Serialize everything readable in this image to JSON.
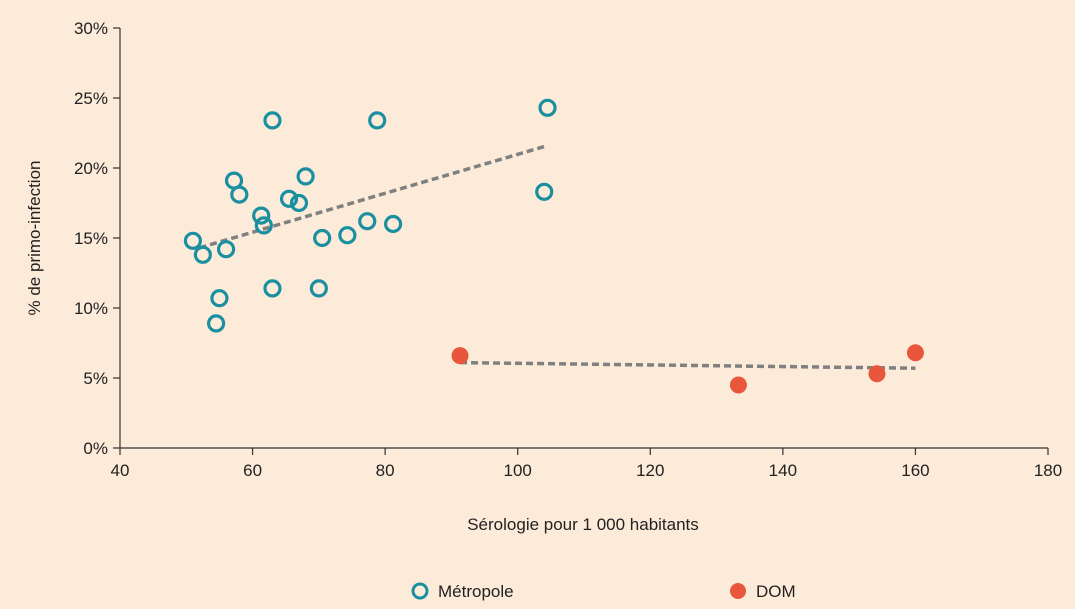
{
  "chart_data": {
    "type": "scatter",
    "title": "",
    "xlabel": "Sérologie pour 1 000 habitants",
    "ylabel": "% de primo-infection",
    "xlim": [
      40,
      180
    ],
    "ylim": [
      0,
      30
    ],
    "x_ticks": [
      40,
      60,
      80,
      100,
      120,
      140,
      160,
      180
    ],
    "y_ticks": [
      0,
      5,
      10,
      15,
      20,
      25,
      30
    ],
    "x_tick_labels": [
      "40",
      "60",
      "80",
      "100",
      "120",
      "140",
      "160",
      "180"
    ],
    "y_tick_labels": [
      "0%",
      "5%",
      "10%",
      "15%",
      "20%",
      "25%",
      "30%"
    ],
    "grid": false,
    "legend_position": "bottom",
    "series": [
      {
        "name": "Métropole",
        "marker": "open-circle",
        "color": "#1a8fa0",
        "points": [
          {
            "x": 51,
            "y": 14.8
          },
          {
            "x": 52.5,
            "y": 13.8
          },
          {
            "x": 56,
            "y": 14.2
          },
          {
            "x": 55,
            "y": 10.7
          },
          {
            "x": 54.5,
            "y": 8.9
          },
          {
            "x": 57.2,
            "y": 19.1
          },
          {
            "x": 58,
            "y": 18.1
          },
          {
            "x": 61.3,
            "y": 16.6
          },
          {
            "x": 61.7,
            "y": 15.9
          },
          {
            "x": 63,
            "y": 23.4
          },
          {
            "x": 63,
            "y": 11.4
          },
          {
            "x": 65.5,
            "y": 17.8
          },
          {
            "x": 67,
            "y": 17.5
          },
          {
            "x": 68,
            "y": 19.4
          },
          {
            "x": 70,
            "y": 11.4
          },
          {
            "x": 70.5,
            "y": 15.0
          },
          {
            "x": 74.3,
            "y": 15.2
          },
          {
            "x": 77.3,
            "y": 16.2
          },
          {
            "x": 78.8,
            "y": 23.4
          },
          {
            "x": 81.2,
            "y": 16.0
          },
          {
            "x": 104,
            "y": 18.3
          },
          {
            "x": 104.5,
            "y": 24.3
          }
        ],
        "trend": {
          "x1": 52,
          "y1": 14.3,
          "x2": 104.5,
          "y2": 21.6
        }
      },
      {
        "name": "DOM",
        "marker": "filled-circle",
        "color": "#e8573b",
        "points": [
          {
            "x": 91.3,
            "y": 6.6
          },
          {
            "x": 133.3,
            "y": 4.5
          },
          {
            "x": 154.2,
            "y": 5.3
          },
          {
            "x": 160,
            "y": 6.8
          }
        ],
        "trend": {
          "x1": 91.3,
          "y1": 6.1,
          "x2": 160,
          "y2": 5.7
        }
      }
    ],
    "trend_color": "#808080"
  },
  "legend": {
    "items": [
      {
        "label": "Métropole"
      },
      {
        "label": "DOM"
      }
    ]
  }
}
